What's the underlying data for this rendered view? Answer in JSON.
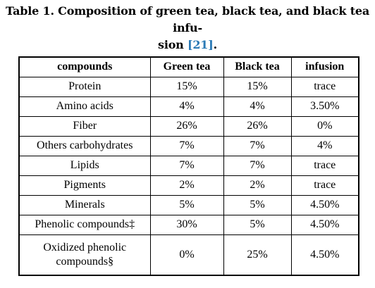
{
  "caption": {
    "prefix": "Table 1. Composition of green tea, black tea, and black tea infu-",
    "line2_start": "sion ",
    "ref": "[21]",
    "line2_end": "."
  },
  "table": {
    "headers": [
      "compounds",
      "Green tea",
      "Black tea",
      "infusion"
    ],
    "rows": [
      [
        "Protein",
        "15%",
        "15%",
        "trace"
      ],
      [
        "Amino acids",
        "4%",
        "4%",
        "3.50%"
      ],
      [
        "Fiber",
        "26%",
        "26%",
        "0%"
      ],
      [
        "Others carbohydrates",
        "7%",
        "7%",
        "4%"
      ],
      [
        "Lipids",
        "7%",
        "7%",
        "trace"
      ],
      [
        "Pigments",
        "2%",
        "2%",
        "trace"
      ],
      [
        "Minerals",
        "5%",
        "5%",
        "4.50%"
      ],
      [
        "Phenolic compounds‡",
        "30%",
        "5%",
        "4.50%"
      ],
      [
        "Oxidized phenolic compounds§",
        "0%",
        "25%",
        "4.50%"
      ]
    ]
  },
  "colors": {
    "reference_link": "#2a7ab6"
  }
}
